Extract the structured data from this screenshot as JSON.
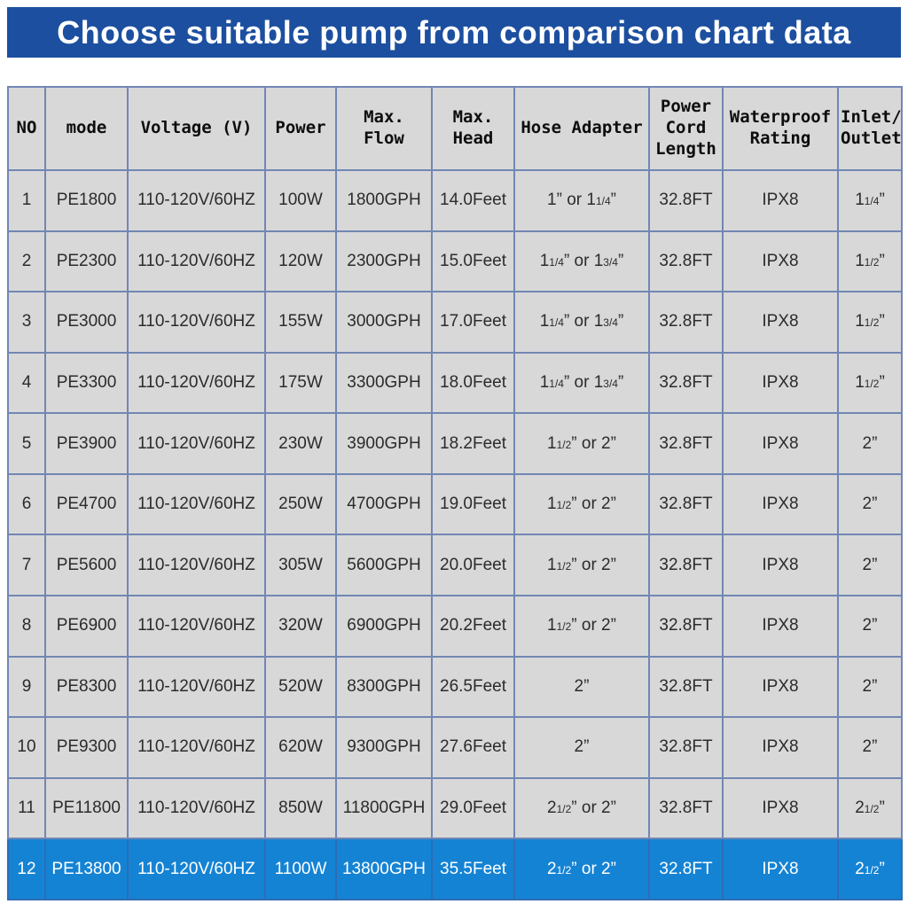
{
  "banner": {
    "title": "Choose suitable pump from comparison chart data"
  },
  "colors": {
    "banner_bg": "#1c4f9f",
    "banner_text": "#ffffff",
    "cell_bg": "#d8d8d8",
    "grid_border": "#7187b4",
    "outer_border": "#3f69ae",
    "highlight_row_bg": "#1583d4",
    "highlight_row_text": "#ffffff",
    "body_text": "#2b2b2b"
  },
  "table": {
    "highlighted_row_index": 11,
    "columns": [
      {
        "key": "no",
        "label": "NO"
      },
      {
        "key": "mode",
        "label": "mode"
      },
      {
        "key": "voltage",
        "label": "Voltage (V)"
      },
      {
        "key": "power",
        "label": "Power"
      },
      {
        "key": "flow",
        "label": "Max.\nFlow"
      },
      {
        "key": "head",
        "label": "Max.\nHead"
      },
      {
        "key": "hose",
        "label": "Hose Adapter"
      },
      {
        "key": "cord",
        "label": "Power\nCord\nLength"
      },
      {
        "key": "waterproof",
        "label": "Waterproof\nRating"
      },
      {
        "key": "inlet",
        "label": "Inlet/\nOutlet"
      }
    ],
    "rows": [
      {
        "no": "1",
        "mode": "PE1800",
        "voltage": "110-120V/60HZ",
        "power": "100W",
        "flow": "1800GPH",
        "head": "14.0Feet",
        "hose": "1” or 1{1/4}”",
        "cord": "32.8FT",
        "waterproof": "IPX8",
        "inlet": "1{1/4}”"
      },
      {
        "no": "2",
        "mode": "PE2300",
        "voltage": "110-120V/60HZ",
        "power": "120W",
        "flow": "2300GPH",
        "head": "15.0Feet",
        "hose": "1{1/4}” or 1{3/4}”",
        "cord": "32.8FT",
        "waterproof": "IPX8",
        "inlet": "1{1/2}”"
      },
      {
        "no": "3",
        "mode": "PE3000",
        "voltage": "110-120V/60HZ",
        "power": "155W",
        "flow": "3000GPH",
        "head": "17.0Feet",
        "hose": "1{1/4}” or 1{3/4}”",
        "cord": "32.8FT",
        "waterproof": "IPX8",
        "inlet": "1{1/2}”"
      },
      {
        "no": "4",
        "mode": "PE3300",
        "voltage": "110-120V/60HZ",
        "power": "175W",
        "flow": "3300GPH",
        "head": "18.0Feet",
        "hose": "1{1/4}” or 1{3/4}”",
        "cord": "32.8FT",
        "waterproof": "IPX8",
        "inlet": "1{1/2}”"
      },
      {
        "no": "5",
        "mode": "PE3900",
        "voltage": "110-120V/60HZ",
        "power": "230W",
        "flow": "3900GPH",
        "head": "18.2Feet",
        "hose": "1{1/2}” or 2”",
        "cord": "32.8FT",
        "waterproof": "IPX8",
        "inlet": "2”"
      },
      {
        "no": "6",
        "mode": "PE4700",
        "voltage": "110-120V/60HZ",
        "power": "250W",
        "flow": "4700GPH",
        "head": "19.0Feet",
        "hose": "1{1/2}” or 2”",
        "cord": "32.8FT",
        "waterproof": "IPX8",
        "inlet": "2”"
      },
      {
        "no": "7",
        "mode": "PE5600",
        "voltage": "110-120V/60HZ",
        "power": "305W",
        "flow": "5600GPH",
        "head": "20.0Feet",
        "hose": "1{1/2}” or 2”",
        "cord": "32.8FT",
        "waterproof": "IPX8",
        "inlet": "2”"
      },
      {
        "no": "8",
        "mode": "PE6900",
        "voltage": "110-120V/60HZ",
        "power": "320W",
        "flow": "6900GPH",
        "head": "20.2Feet",
        "hose": "1{1/2}” or 2”",
        "cord": "32.8FT",
        "waterproof": "IPX8",
        "inlet": "2”"
      },
      {
        "no": "9",
        "mode": "PE8300",
        "voltage": "110-120V/60HZ",
        "power": "520W",
        "flow": "8300GPH",
        "head": "26.5Feet",
        "hose": "2”",
        "cord": "32.8FT",
        "waterproof": "IPX8",
        "inlet": "2”"
      },
      {
        "no": "10",
        "mode": "PE9300",
        "voltage": "110-120V/60HZ",
        "power": "620W",
        "flow": "9300GPH",
        "head": "27.6Feet",
        "hose": "2”",
        "cord": "32.8FT",
        "waterproof": "IPX8",
        "inlet": "2”"
      },
      {
        "no": "11",
        "mode": "PE11800",
        "voltage": "110-120V/60HZ",
        "power": "850W",
        "flow": "11800GPH",
        "head": "29.0Feet",
        "hose": "2{1/2}” or 2”",
        "cord": "32.8FT",
        "waterproof": "IPX8",
        "inlet": "2{1/2}”"
      },
      {
        "no": "12",
        "mode": "PE13800",
        "voltage": "110-120V/60HZ",
        "power": "1100W",
        "flow": "13800GPH",
        "head": "35.5Feet",
        "hose": "2{1/2}” or 2”",
        "cord": "32.8FT",
        "waterproof": "IPX8",
        "inlet": "2{1/2}”"
      }
    ]
  }
}
